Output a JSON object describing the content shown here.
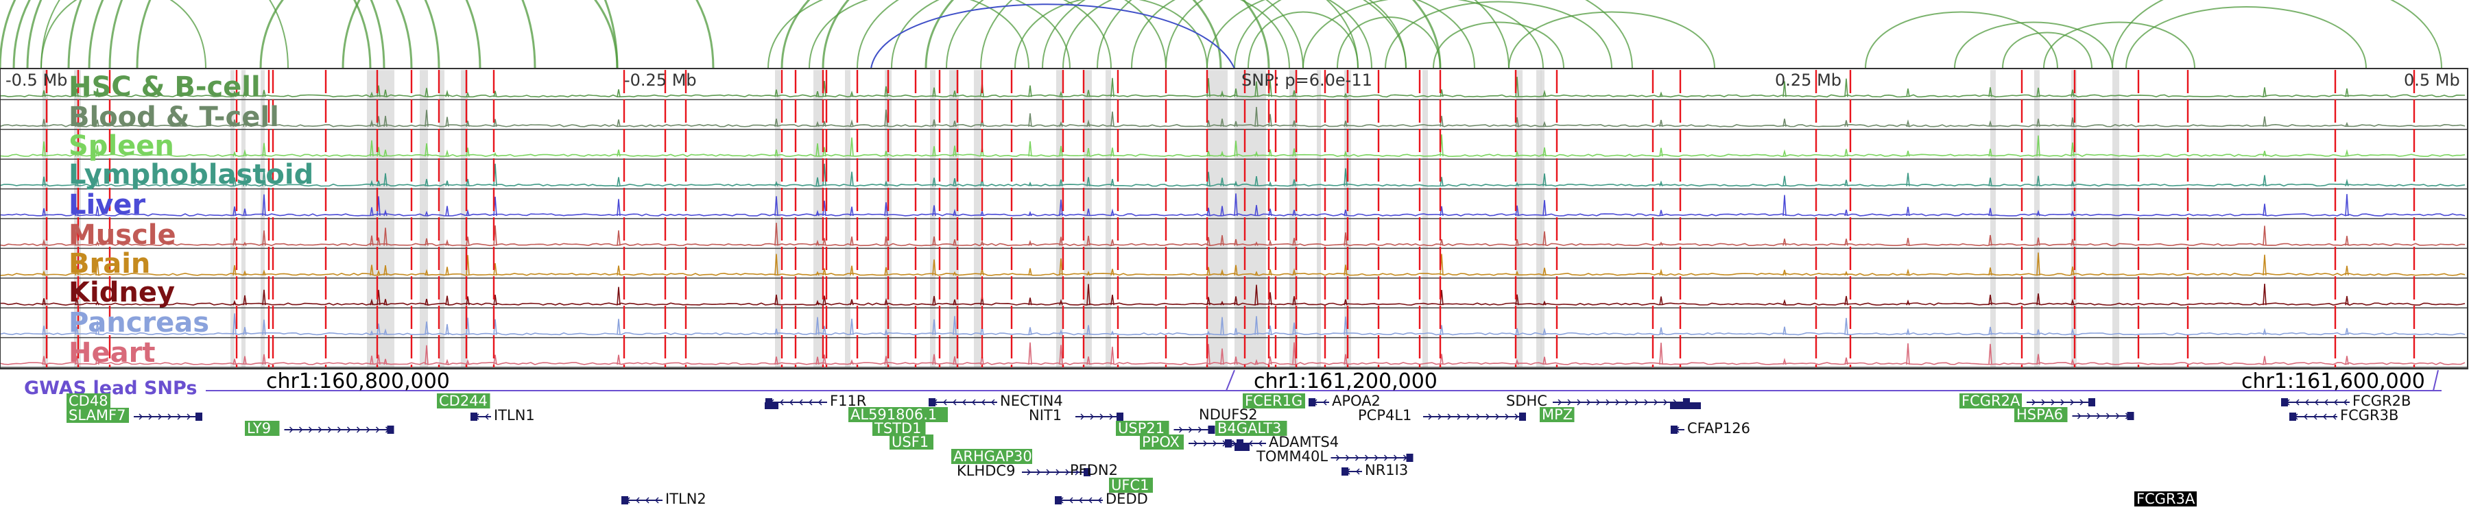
{
  "axis": {
    "labels": [
      "-0.5 Mb",
      "-0.25 Mb",
      "SNP: p=6.0e-11",
      "0.25 Mb",
      "0.5 Mb"
    ],
    "coordinates": [
      "chr1:160,800,000",
      "chr1:161,200,000",
      "chr1:161,600,000"
    ]
  },
  "gwas_label": "GWAS lead SNPs",
  "tracks": [
    {
      "name": "HSC & B-cell",
      "color": "#5b9a4f"
    },
    {
      "name": "Blood & T-cell",
      "color": "#6e8a6a"
    },
    {
      "name": "Spleen",
      "color": "#7ad45f"
    },
    {
      "name": "Lymphoblastoid",
      "color": "#3f9a86"
    },
    {
      "name": "Liver",
      "color": "#4b4bd6"
    },
    {
      "name": "Muscle",
      "color": "#c15a55"
    },
    {
      "name": "Brain",
      "color": "#c58a1e"
    },
    {
      "name": "Kidney",
      "color": "#7a0f12"
    },
    {
      "name": "Pancreas",
      "color": "#8aa2dc"
    },
    {
      "name": "Heart",
      "color": "#d86a7a"
    }
  ],
  "genes": [
    {
      "name": "CD48",
      "boxed": "green"
    },
    {
      "name": "SLAMF7",
      "boxed": "green"
    },
    {
      "name": "LY9",
      "boxed": "green"
    },
    {
      "name": "CD244",
      "boxed": "green"
    },
    {
      "name": "ITLN1",
      "boxed": "none"
    },
    {
      "name": "ITLN2",
      "boxed": "none"
    },
    {
      "name": "F11R",
      "boxed": "none"
    },
    {
      "name": "AL591806.1",
      "boxed": "green"
    },
    {
      "name": "TSTD1",
      "boxed": "green"
    },
    {
      "name": "USF1",
      "boxed": "green"
    },
    {
      "name": "ARHGAP30",
      "boxed": "green"
    },
    {
      "name": "NECTIN4",
      "boxed": "none"
    },
    {
      "name": "NIT1",
      "boxed": "none"
    },
    {
      "name": "KLHDC9",
      "boxed": "none"
    },
    {
      "name": "PFDN2",
      "boxed": "none"
    },
    {
      "name": "USP21",
      "boxed": "green"
    },
    {
      "name": "PPOX",
      "boxed": "green"
    },
    {
      "name": "UFC1",
      "boxed": "green"
    },
    {
      "name": "DEDD",
      "boxed": "none"
    },
    {
      "name": "NDUFS2",
      "boxed": "none"
    },
    {
      "name": "FCER1G",
      "boxed": "green"
    },
    {
      "name": "B4GALT3",
      "boxed": "green"
    },
    {
      "name": "ADAMTS4",
      "boxed": "none"
    },
    {
      "name": "TOMM40L",
      "boxed": "none"
    },
    {
      "name": "NR1I3",
      "boxed": "none"
    },
    {
      "name": "APOA2",
      "boxed": "none"
    },
    {
      "name": "PCP4L1",
      "boxed": "none"
    },
    {
      "name": "SDHC",
      "boxed": "none"
    },
    {
      "name": "MPZ",
      "boxed": "green"
    },
    {
      "name": "CFAP126",
      "boxed": "none"
    },
    {
      "name": "FCGR2A",
      "boxed": "green"
    },
    {
      "name": "HSPA6",
      "boxed": "green"
    },
    {
      "name": "FCGR3A",
      "boxed": "black"
    },
    {
      "name": "FCGR2B",
      "boxed": "none"
    },
    {
      "name": "FCGR3B",
      "boxed": "none"
    }
  ],
  "colors": {
    "loop_green": "#4f9a3c",
    "loop_blue": "#4050c8",
    "snp_red": "#e8141c",
    "highlight_gray": "#d9d9d9",
    "gwas_purple": "#6a4fd0",
    "gene_box_green": "#4faa4a",
    "gene_dark": "#1a1a6e"
  }
}
